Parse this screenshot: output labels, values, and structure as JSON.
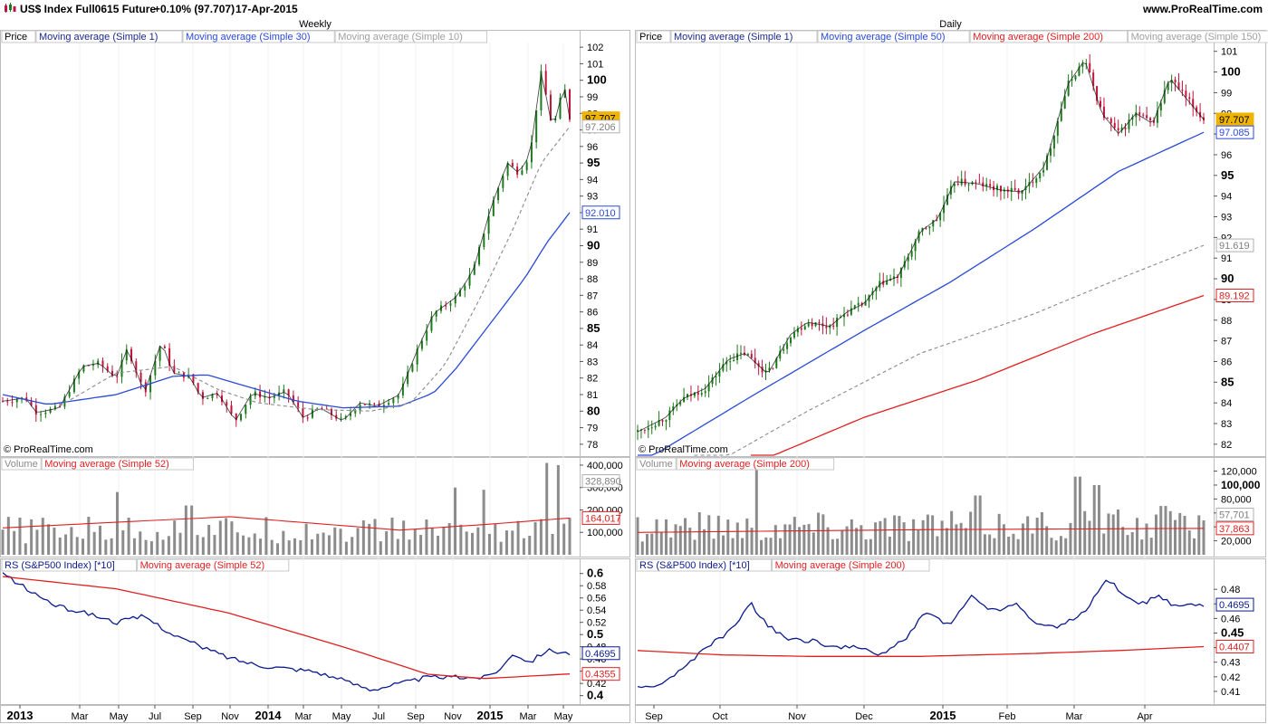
{
  "header": {
    "ticker": "US$ Index Full0615 Future",
    "change": "+0.10% (97.707)",
    "date": "17-Apr-2015",
    "site": "www.ProRealTime.com",
    "copyright": "© ProRealTime.com"
  },
  "colors": {
    "up": "#1b7a1b",
    "down": "#c0143c",
    "ma_blue": "#2a4bd7",
    "ma_red": "#e02020",
    "ma_gray": "#8a8a8a",
    "rs_line": "#0a1a8c",
    "volume_bar": "#8c8c8c",
    "price_tag": "#f0b400"
  },
  "panes": {
    "weekly": {
      "title": "Weekly",
      "price_legend": [
        "Price",
        "Moving average (Simple 1)",
        "Moving average (Simple 30)",
        "Moving average (Simple 10)"
      ],
      "volume_legend": [
        "Volume",
        "Moving average (Simple 52)"
      ],
      "rs_legend": [
        "RS (S&P500 Index) [*10]",
        "Moving average (Simple 52)"
      ],
      "price_tags": [
        {
          "text": "97.707",
          "value": 97.707,
          "style": "gold"
        },
        {
          "text": "97.206",
          "value": 97.206,
          "style": "gray"
        },
        {
          "text": "92.010",
          "value": 92.01,
          "style": "blue"
        }
      ],
      "volume_tags": [
        {
          "text": "328,890",
          "value": 328890,
          "style": "gray"
        },
        {
          "text": "164,017",
          "value": 164017,
          "style": "red"
        }
      ],
      "rs_tags": [
        {
          "text": "0.4695",
          "value": 0.4695,
          "style": "navy"
        },
        {
          "text": "0.4355",
          "value": 0.4355,
          "style": "red"
        }
      ],
      "x_labels": [
        "2013",
        "Mar",
        "May",
        "Jul",
        "Sep",
        "Nov",
        "2014",
        "Mar",
        "May",
        "Jul",
        "Sep",
        "Nov",
        "2015",
        "Mar",
        "May"
      ],
      "x_bold": [
        "2013",
        "2014",
        "2015"
      ]
    },
    "daily": {
      "title": "Daily",
      "price_legend": [
        "Price",
        "Moving average (Simple 1)",
        "Moving average (Simple 50)",
        "Moving average (Simple 200)",
        "Moving average (Simple 150)"
      ],
      "volume_legend": [
        "Volume",
        "Moving average (Simple 200)"
      ],
      "rs_legend": [
        "RS (S&P500 Index) [*10]",
        "Moving average (Simple 200)"
      ],
      "price_tags": [
        {
          "text": "97.707",
          "value": 97.707,
          "style": "gold"
        },
        {
          "text": "97.085",
          "value": 97.085,
          "style": "blue"
        },
        {
          "text": "91.619",
          "value": 91.619,
          "style": "gray"
        },
        {
          "text": "89.192",
          "value": 89.192,
          "style": "red"
        }
      ],
      "volume_tags": [
        {
          "text": "57,701",
          "value": 57701,
          "style": "gray"
        },
        {
          "text": "37,863",
          "value": 37863,
          "style": "red"
        }
      ],
      "rs_tags": [
        {
          "text": "0.4695",
          "value": 0.4695,
          "style": "navy"
        },
        {
          "text": "0.4407",
          "value": 0.4407,
          "style": "red"
        }
      ],
      "x_labels": [
        "Sep",
        "Oct",
        "Nov",
        "Dec",
        "2015",
        "Feb",
        "Mar",
        "Apr"
      ],
      "x_bold": [
        "2015"
      ]
    }
  },
  "chart_data": [
    {
      "type": "candlestick",
      "title": "Weekly",
      "ylim": [
        77.5,
        102.5
      ],
      "y_ticks": [
        78,
        79,
        80,
        81,
        82,
        83,
        84,
        85,
        86,
        87,
        88,
        89,
        90,
        91,
        92,
        93,
        94,
        95,
        96,
        97,
        98,
        99,
        100,
        101,
        102
      ],
      "y_ticks_bold": [
        80,
        85,
        90,
        95,
        100
      ],
      "close_key": [
        {
          "t": 0,
          "v": 80.6
        },
        {
          "t": 0.04,
          "v": 80.8
        },
        {
          "t": 0.06,
          "v": 79.9
        },
        {
          "t": 0.1,
          "v": 80.2
        },
        {
          "t": 0.14,
          "v": 82.7
        },
        {
          "t": 0.17,
          "v": 82.9
        },
        {
          "t": 0.2,
          "v": 82.0
        },
        {
          "t": 0.22,
          "v": 83.8
        },
        {
          "t": 0.25,
          "v": 81.1
        },
        {
          "t": 0.28,
          "v": 84.2
        },
        {
          "t": 0.3,
          "v": 82.3
        },
        {
          "t": 0.33,
          "v": 82.1
        },
        {
          "t": 0.35,
          "v": 80.8
        },
        {
          "t": 0.38,
          "v": 81.1
        },
        {
          "t": 0.41,
          "v": 79.4
        },
        {
          "t": 0.44,
          "v": 81.1
        },
        {
          "t": 0.47,
          "v": 80.8
        },
        {
          "t": 0.5,
          "v": 81.2
        },
        {
          "t": 0.53,
          "v": 79.6
        },
        {
          "t": 0.56,
          "v": 80.2
        },
        {
          "t": 0.6,
          "v": 79.4
        },
        {
          "t": 0.63,
          "v": 80.5
        },
        {
          "t": 0.66,
          "v": 80.3
        },
        {
          "t": 0.7,
          "v": 81.0
        },
        {
          "t": 0.73,
          "v": 83.6
        },
        {
          "t": 0.76,
          "v": 85.9
        },
        {
          "t": 0.8,
          "v": 86.9
        },
        {
          "t": 0.83,
          "v": 88.5
        },
        {
          "t": 0.86,
          "v": 92.2
        },
        {
          "t": 0.89,
          "v": 95.0
        },
        {
          "t": 0.91,
          "v": 94.4
        },
        {
          "t": 0.93,
          "v": 95.5
        },
        {
          "t": 0.95,
          "v": 100.5
        },
        {
          "t": 0.97,
          "v": 97.0
        },
        {
          "t": 0.99,
          "v": 99.7
        },
        {
          "t": 1.0,
          "v": 97.7
        }
      ],
      "ma_simple_30": [
        {
          "t": 0,
          "v": 81.0
        },
        {
          "t": 0.08,
          "v": 80.4
        },
        {
          "t": 0.2,
          "v": 81.0
        },
        {
          "t": 0.3,
          "v": 82.1
        },
        {
          "t": 0.36,
          "v": 82.2
        },
        {
          "t": 0.45,
          "v": 81.3
        },
        {
          "t": 0.52,
          "v": 80.6
        },
        {
          "t": 0.6,
          "v": 80.2
        },
        {
          "t": 0.7,
          "v": 80.3
        },
        {
          "t": 0.76,
          "v": 81.1
        },
        {
          "t": 0.8,
          "v": 82.6
        },
        {
          "t": 0.86,
          "v": 85.3
        },
        {
          "t": 0.92,
          "v": 88.0
        },
        {
          "t": 0.96,
          "v": 90.2
        },
        {
          "t": 1.0,
          "v": 92.0
        }
      ],
      "ma_simple_10": [
        {
          "t": 0.1,
          "v": 80.3
        },
        {
          "t": 0.2,
          "v": 82.3
        },
        {
          "t": 0.3,
          "v": 82.7
        },
        {
          "t": 0.38,
          "v": 81.3
        },
        {
          "t": 0.45,
          "v": 80.5
        },
        {
          "t": 0.55,
          "v": 80.1
        },
        {
          "t": 0.65,
          "v": 80.0
        },
        {
          "t": 0.72,
          "v": 80.5
        },
        {
          "t": 0.78,
          "v": 82.8
        },
        {
          "t": 0.84,
          "v": 86.7
        },
        {
          "t": 0.9,
          "v": 91.0
        },
        {
          "t": 0.95,
          "v": 95.0
        },
        {
          "t": 1.0,
          "v": 97.2
        }
      ],
      "volume": {
        "ylim": [
          0,
          420000
        ],
        "y_ticks": [
          100000,
          200000,
          300000,
          400000
        ],
        "y_tick_labels": [
          "100,000",
          "200,000",
          "300,000",
          "400,000"
        ],
        "base_level": 110000,
        "peaks": [
          {
            "t": 0.2,
            "v": 280000
          },
          {
            "t": 0.33,
            "v": 220000
          },
          {
            "t": 0.8,
            "v": 300000
          },
          {
            "t": 0.85,
            "v": 290000
          },
          {
            "t": 0.96,
            "v": 410000
          },
          {
            "t": 0.98,
            "v": 400000
          }
        ],
        "ma_simple_52": [
          {
            "t": 0,
            "v": 120000
          },
          {
            "t": 0.4,
            "v": 170000
          },
          {
            "t": 0.7,
            "v": 110000
          },
          {
            "t": 0.85,
            "v": 135000
          },
          {
            "t": 1.0,
            "v": 164017
          }
        ]
      },
      "rs": {
        "ylim": [
          0.395,
          0.61
        ],
        "y_ticks": [
          0.4,
          0.42,
          0.44,
          0.46,
          0.48,
          0.5,
          0.52,
          0.54,
          0.56,
          0.58,
          0.6
        ],
        "y_ticks_bold": [
          0.4,
          0.5,
          0.6
        ],
        "line": [
          {
            "t": 0,
            "v": 0.6
          },
          {
            "t": 0.05,
            "v": 0.57
          },
          {
            "t": 0.1,
            "v": 0.545
          },
          {
            "t": 0.15,
            "v": 0.535
          },
          {
            "t": 0.2,
            "v": 0.52
          },
          {
            "t": 0.25,
            "v": 0.53
          },
          {
            "t": 0.3,
            "v": 0.5
          },
          {
            "t": 0.35,
            "v": 0.48
          },
          {
            "t": 0.4,
            "v": 0.462
          },
          {
            "t": 0.45,
            "v": 0.45
          },
          {
            "t": 0.5,
            "v": 0.445
          },
          {
            "t": 0.55,
            "v": 0.44
          },
          {
            "t": 0.6,
            "v": 0.425
          },
          {
            "t": 0.65,
            "v": 0.41
          },
          {
            "t": 0.7,
            "v": 0.42
          },
          {
            "t": 0.75,
            "v": 0.43
          },
          {
            "t": 0.8,
            "v": 0.43
          },
          {
            "t": 0.85,
            "v": 0.43
          },
          {
            "t": 0.88,
            "v": 0.445
          },
          {
            "t": 0.9,
            "v": 0.47
          },
          {
            "t": 0.93,
            "v": 0.455
          },
          {
            "t": 0.96,
            "v": 0.475
          },
          {
            "t": 1.0,
            "v": 0.4695
          }
        ],
        "ma_simple_52": [
          {
            "t": 0,
            "v": 0.595
          },
          {
            "t": 0.2,
            "v": 0.575
          },
          {
            "t": 0.4,
            "v": 0.535
          },
          {
            "t": 0.6,
            "v": 0.48
          },
          {
            "t": 0.75,
            "v": 0.435
          },
          {
            "t": 0.85,
            "v": 0.428
          },
          {
            "t": 1.0,
            "v": 0.4355
          }
        ]
      }
    },
    {
      "type": "candlestick",
      "title": "Daily",
      "ylim": [
        81.6,
        101.6
      ],
      "y_ticks": [
        82,
        83,
        84,
        85,
        86,
        87,
        88,
        89,
        90,
        91,
        92,
        93,
        94,
        95,
        96,
        97,
        98,
        99,
        100,
        101
      ],
      "y_ticks_bold": [
        85,
        90,
        95,
        100
      ],
      "close_key": [
        {
          "t": 0,
          "v": 82.6
        },
        {
          "t": 0.05,
          "v": 83.3
        },
        {
          "t": 0.08,
          "v": 84.2
        },
        {
          "t": 0.12,
          "v": 84.7
        },
        {
          "t": 0.16,
          "v": 86.1
        },
        {
          "t": 0.19,
          "v": 86.4
        },
        {
          "t": 0.23,
          "v": 85.4
        },
        {
          "t": 0.27,
          "v": 87.3
        },
        {
          "t": 0.3,
          "v": 87.9
        },
        {
          "t": 0.34,
          "v": 87.7
        },
        {
          "t": 0.37,
          "v": 88.4
        },
        {
          "t": 0.4,
          "v": 88.8
        },
        {
          "t": 0.43,
          "v": 89.8
        },
        {
          "t": 0.46,
          "v": 90.1
        },
        {
          "t": 0.5,
          "v": 92.3
        },
        {
          "t": 0.53,
          "v": 92.9
        },
        {
          "t": 0.56,
          "v": 94.7
        },
        {
          "t": 0.6,
          "v": 94.6
        },
        {
          "t": 0.64,
          "v": 94.3
        },
        {
          "t": 0.68,
          "v": 94.2
        },
        {
          "t": 0.72,
          "v": 95.5
        },
        {
          "t": 0.76,
          "v": 99.4
        },
        {
          "t": 0.79,
          "v": 100.6
        },
        {
          "t": 0.82,
          "v": 98.0
        },
        {
          "t": 0.85,
          "v": 97.0
        },
        {
          "t": 0.88,
          "v": 98.0
        },
        {
          "t": 0.91,
          "v": 97.5
        },
        {
          "t": 0.94,
          "v": 99.7
        },
        {
          "t": 0.97,
          "v": 98.7
        },
        {
          "t": 1.0,
          "v": 97.7
        }
      ],
      "ma_simple_50": [
        {
          "t": 0,
          "v": 81.0
        },
        {
          "t": 0.2,
          "v": 84.3
        },
        {
          "t": 0.4,
          "v": 87.5
        },
        {
          "t": 0.55,
          "v": 89.8
        },
        {
          "t": 0.7,
          "v": 92.4
        },
        {
          "t": 0.85,
          "v": 95.2
        },
        {
          "t": 1.0,
          "v": 97.085
        }
      ],
      "ma_simple_150": [
        {
          "t": 0.1,
          "v": 80.5
        },
        {
          "t": 0.3,
          "v": 83.6
        },
        {
          "t": 0.5,
          "v": 86.4
        },
        {
          "t": 0.7,
          "v": 88.3
        },
        {
          "t": 0.85,
          "v": 90.0
        },
        {
          "t": 1.0,
          "v": 91.619
        }
      ],
      "ma_simple_200": [
        {
          "t": 0.2,
          "v": 81.0
        },
        {
          "t": 0.4,
          "v": 83.3
        },
        {
          "t": 0.6,
          "v": 85.1
        },
        {
          "t": 0.8,
          "v": 87.3
        },
        {
          "t": 1.0,
          "v": 89.192
        }
      ],
      "volume": {
        "ylim": [
          0,
          135000
        ],
        "y_ticks": [
          20000,
          40000,
          60000,
          80000,
          100000,
          120000
        ],
        "y_tick_labels": [
          "20,000",
          "40,000",
          "60,000",
          "80,000",
          "100,000",
          "120,000"
        ],
        "y_ticks_bold": [
          100000
        ],
        "base_level": 42000,
        "peaks": [
          {
            "t": 0.21,
            "v": 128000
          },
          {
            "t": 0.6,
            "v": 85000
          },
          {
            "t": 0.78,
            "v": 112000
          },
          {
            "t": 0.81,
            "v": 100000
          },
          {
            "t": 0.93,
            "v": 70000
          }
        ],
        "ma_simple_200": [
          {
            "t": 0,
            "v": 32000
          },
          {
            "t": 0.5,
            "v": 36000
          },
          {
            "t": 1.0,
            "v": 37863
          }
        ]
      },
      "rs": {
        "ylim": [
          0.405,
          0.495
        ],
        "y_ticks": [
          0.41,
          0.42,
          0.43,
          0.44,
          0.45,
          0.46,
          0.47,
          0.48,
          0.49
        ],
        "y_tick_labels": [
          "0.41",
          "0.42",
          "0.43",
          "0.44",
          "0.45",
          "0.46",
          "0.47",
          "0.48"
        ],
        "y_ticks_bold": [
          0.45
        ],
        "line": [
          {
            "t": 0,
            "v": 0.412
          },
          {
            "t": 0.04,
            "v": 0.415
          },
          {
            "t": 0.08,
            "v": 0.425
          },
          {
            "t": 0.12,
            "v": 0.44
          },
          {
            "t": 0.16,
            "v": 0.45
          },
          {
            "t": 0.2,
            "v": 0.47
          },
          {
            "t": 0.23,
            "v": 0.455
          },
          {
            "t": 0.27,
            "v": 0.445
          },
          {
            "t": 0.31,
            "v": 0.445
          },
          {
            "t": 0.35,
            "v": 0.44
          },
          {
            "t": 0.39,
            "v": 0.44
          },
          {
            "t": 0.43,
            "v": 0.435
          },
          {
            "t": 0.47,
            "v": 0.445
          },
          {
            "t": 0.51,
            "v": 0.465
          },
          {
            "t": 0.55,
            "v": 0.455
          },
          {
            "t": 0.59,
            "v": 0.475
          },
          {
            "t": 0.63,
            "v": 0.465
          },
          {
            "t": 0.67,
            "v": 0.47
          },
          {
            "t": 0.71,
            "v": 0.455
          },
          {
            "t": 0.75,
            "v": 0.455
          },
          {
            "t": 0.79,
            "v": 0.465
          },
          {
            "t": 0.83,
            "v": 0.488
          },
          {
            "t": 0.86,
            "v": 0.475
          },
          {
            "t": 0.89,
            "v": 0.47
          },
          {
            "t": 0.92,
            "v": 0.475
          },
          {
            "t": 0.95,
            "v": 0.468
          },
          {
            "t": 1.0,
            "v": 0.4695
          }
        ],
        "ma_simple_200": [
          {
            "t": 0,
            "v": 0.438
          },
          {
            "t": 0.15,
            "v": 0.435
          },
          {
            "t": 0.3,
            "v": 0.434
          },
          {
            "t": 0.5,
            "v": 0.434
          },
          {
            "t": 0.7,
            "v": 0.436
          },
          {
            "t": 0.85,
            "v": 0.438
          },
          {
            "t": 1.0,
            "v": 0.4407
          }
        ]
      }
    }
  ]
}
